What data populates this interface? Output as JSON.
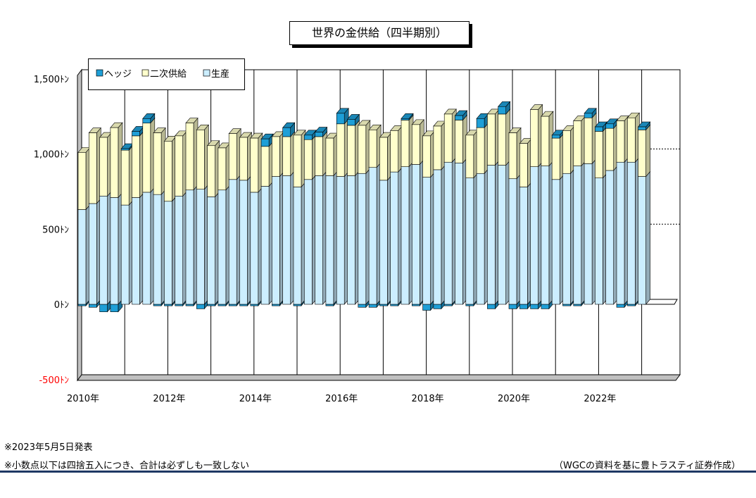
{
  "title": "世界の金供給（四半期別）",
  "legend": [
    "ヘッジ",
    "二次供給",
    "生産"
  ],
  "y_unit_suffix": "ﾄﾝ",
  "notes": {
    "date": "※2023年5月5日発表",
    "rounding": "※小数点以下は四捨五入につき、合計は必ずしも一致しない",
    "source": "（WGCの資料を基に豊トラスティ証券作成）"
  },
  "colors": {
    "hedge": "#1e9fd7",
    "secondary": "#ffffcc",
    "production": "#cceeff",
    "negative_tick": "#ff0000"
  },
  "chart_data": {
    "type": "bar",
    "stacked": true,
    "ylim": [
      -500,
      1500
    ],
    "yticks": [
      -500,
      0,
      500,
      1000,
      1500
    ],
    "ytick_labels": [
      "-500ﾄﾝ",
      "0ﾄﾝ",
      "500ﾄﾝ",
      "1,000ﾄﾝ",
      "1,500ﾄﾝ"
    ],
    "xtick_labels": [
      "2010年",
      "2012年",
      "2014年",
      "2016年",
      "2018年",
      "2020年",
      "2022年"
    ],
    "categories": [
      "2010Q1",
      "2010Q2",
      "2010Q3",
      "2010Q4",
      "2011Q1",
      "2011Q2",
      "2011Q3",
      "2011Q4",
      "2012Q1",
      "2012Q2",
      "2012Q3",
      "2012Q4",
      "2013Q1",
      "2013Q2",
      "2013Q3",
      "2013Q4",
      "2014Q1",
      "2014Q2",
      "2014Q3",
      "2014Q4",
      "2015Q1",
      "2015Q2",
      "2015Q3",
      "2015Q4",
      "2016Q1",
      "2016Q2",
      "2016Q3",
      "2016Q4",
      "2017Q1",
      "2017Q2",
      "2017Q3",
      "2017Q4",
      "2018Q1",
      "2018Q2",
      "2018Q3",
      "2018Q4",
      "2019Q1",
      "2019Q2",
      "2019Q3",
      "2019Q4",
      "2020Q1",
      "2020Q2",
      "2020Q3",
      "2020Q4",
      "2021Q1",
      "2021Q2",
      "2021Q3",
      "2021Q4",
      "2022Q1",
      "2022Q2",
      "2022Q3",
      "2022Q4",
      "2023Q1"
    ],
    "grid": false,
    "legend_position": "top-left",
    "series": [
      {
        "name": "生産",
        "values": [
          630,
          670,
          720,
          710,
          660,
          710,
          745,
          730,
          685,
          720,
          760,
          765,
          715,
          760,
          830,
          825,
          745,
          785,
          850,
          855,
          780,
          830,
          855,
          855,
          850,
          855,
          870,
          910,
          825,
          880,
          915,
          930,
          845,
          895,
          945,
          940,
          840,
          870,
          925,
          925,
          835,
          780,
          915,
          920,
          830,
          870,
          920,
          935,
          840,
          890,
          945,
          945,
          850
        ]
      },
      {
        "name": "二次供給",
        "values": [
          380,
          470,
          390,
          465,
          365,
          410,
          460,
          410,
          400,
          400,
          445,
          395,
          340,
          280,
          305,
          285,
          360,
          265,
          265,
          260,
          345,
          265,
          260,
          250,
          350,
          335,
          320,
          250,
          285,
          275,
          310,
          265,
          275,
          290,
          320,
          285,
          285,
          305,
          340,
          340,
          305,
          290,
          380,
          330,
          275,
          285,
          300,
          305,
          310,
          280,
          275,
          295,
          310
        ]
      },
      {
        "name": "ヘッジ",
        "values": [
          -10,
          -20,
          -50,
          -50,
          10,
          30,
          30,
          -10,
          -10,
          -10,
          -10,
          -30,
          -10,
          -10,
          -10,
          -10,
          -10,
          50,
          -10,
          60,
          -10,
          30,
          30,
          -10,
          70,
          40,
          -20,
          -20,
          -10,
          -10,
          10,
          -10,
          -40,
          -30,
          -10,
          30,
          -10,
          60,
          -30,
          50,
          -30,
          -30,
          -30,
          -30,
          20,
          -10,
          -10,
          30,
          30,
          30,
          -20,
          -10,
          20
        ]
      }
    ]
  }
}
